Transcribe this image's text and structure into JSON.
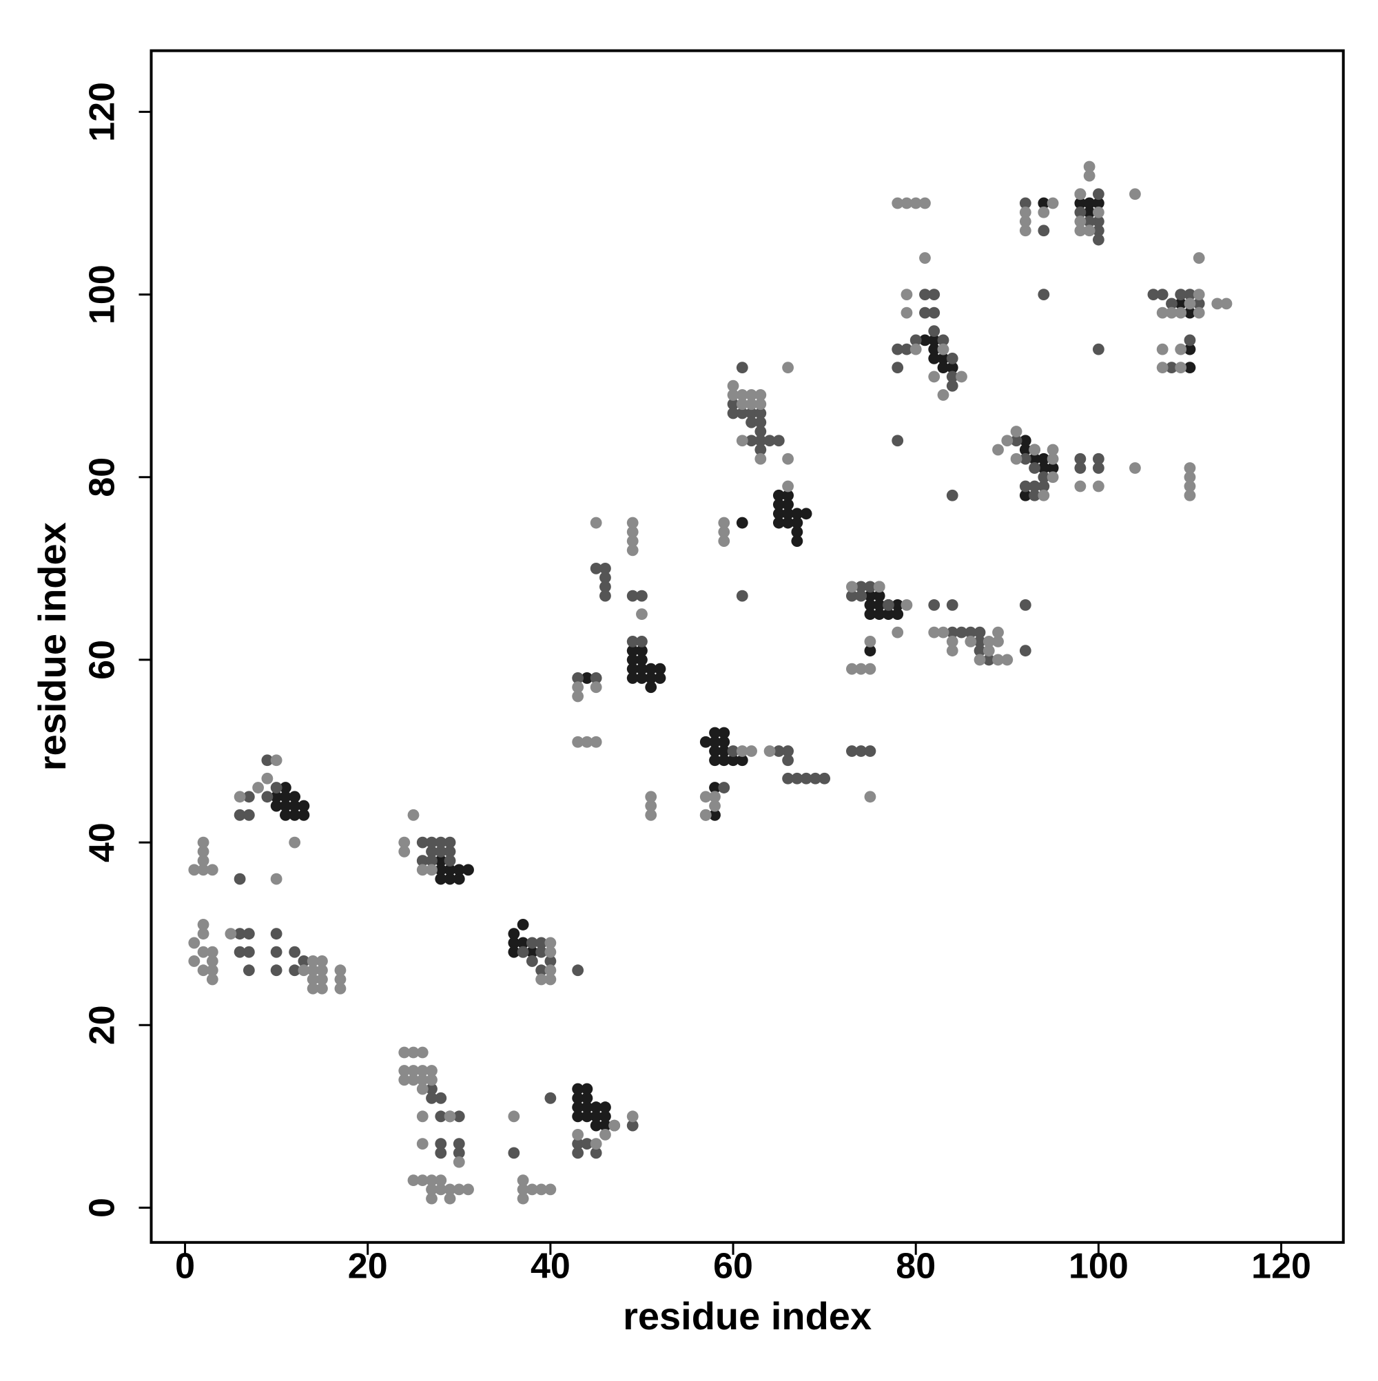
{
  "chart_data": {
    "type": "scatter",
    "xlabel": "residue index",
    "ylabel": "residue index",
    "xlim": [
      -3.7,
      126.8
    ],
    "ylim": [
      -3.8,
      126.7
    ],
    "xticks": [
      0,
      20,
      40,
      60,
      80,
      100,
      120
    ],
    "yticks": [
      0,
      20,
      40,
      60,
      80,
      100,
      120
    ],
    "series": [
      {
        "color": "#1c1c1c",
        "x": [
          10,
          11,
          11,
          10,
          11,
          12,
          11,
          12,
          13,
          13,
          12,
          28,
          28,
          29,
          29,
          30,
          30,
          31,
          28,
          36,
          36,
          37,
          37,
          36,
          37,
          38,
          43,
          43,
          43,
          44,
          44,
          44,
          43,
          44,
          45,
          45,
          46,
          46,
          45,
          46,
          49,
          49,
          49,
          49,
          50,
          50,
          50,
          50,
          51,
          51,
          51,
          52,
          52,
          58,
          58,
          59,
          59,
          58,
          59,
          58,
          59,
          60,
          61,
          57,
          58,
          58,
          65,
          65,
          65,
          65,
          66,
          66,
          66,
          66,
          67,
          67,
          67,
          67,
          68,
          75,
          75,
          75,
          76,
          76,
          76,
          76,
          77,
          77,
          78,
          78,
          75,
          44,
          61,
          92,
          92,
          93,
          94,
          94,
          95,
          93,
          92,
          82,
          81,
          82,
          83,
          83,
          84,
          82,
          98,
          99,
          99,
          100,
          94,
          109,
          110,
          110,
          110,
          110
        ],
        "y": [
          45,
          45,
          46,
          44,
          44,
          44,
          43,
          43,
          43,
          44,
          45,
          37,
          36,
          36,
          37,
          36,
          37,
          37,
          38,
          29,
          30,
          31,
          29,
          28,
          28,
          28,
          11,
          12,
          13,
          13,
          12,
          11,
          10,
          10,
          10,
          11,
          11,
          10,
          9,
          9,
          58,
          59,
          60,
          61,
          61,
          60,
          59,
          58,
          58,
          59,
          57,
          58,
          59,
          51,
          52,
          52,
          51,
          50,
          50,
          49,
          49,
          49,
          49,
          51,
          43,
          46,
          75,
          76,
          77,
          78,
          78,
          77,
          76,
          75,
          75,
          76,
          74,
          73,
          76,
          65,
          66,
          67,
          65,
          66,
          67,
          68,
          65,
          66,
          65,
          66,
          61,
          58,
          75,
          84,
          83,
          82,
          82,
          81,
          81,
          83,
          78,
          95,
          95,
          93,
          93,
          92,
          92,
          94,
          110,
          110,
          109,
          110,
          110,
          99,
          99,
          98,
          94,
          92
        ]
      },
      {
        "color": "#555555",
        "x": [
          9,
          10,
          9,
          6,
          7,
          7,
          6,
          6,
          7,
          6,
          7,
          10,
          10,
          12,
          12,
          13,
          10,
          7,
          27,
          26,
          27,
          28,
          29,
          29,
          26,
          27,
          28,
          29,
          37,
          38,
          38,
          39,
          39,
          39,
          40,
          43,
          27,
          27,
          28,
          28,
          29,
          30,
          28,
          28,
          30,
          30,
          43,
          43,
          44,
          45,
          47,
          49,
          40,
          36,
          45,
          46,
          46,
          46,
          46,
          49,
          50,
          43,
          45,
          49,
          50,
          60,
          59,
          57,
          66,
          66,
          65,
          66,
          67,
          68,
          69,
          70,
          73,
          74,
          75,
          73,
          74,
          74,
          75,
          77,
          60,
          60,
          61,
          62,
          63,
          63,
          63,
          62,
          63,
          63,
          62,
          61,
          64,
          65,
          61,
          78,
          79,
          81,
          82,
          81,
          82,
          80,
          82,
          83,
          84,
          84,
          84,
          84,
          78,
          78,
          84,
          85,
          86,
          87,
          87,
          87,
          88,
          82,
          84,
          92,
          92,
          92,
          93,
          94,
          94,
          93,
          92,
          91,
          93,
          92,
          94,
          98,
          98,
          100,
          100,
          100,
          100,
          99,
          94,
          100,
          98,
          98,
          100,
          100,
          106,
          107,
          108,
          109,
          110,
          111,
          110,
          108
        ],
        "y": [
          49,
          46,
          45,
          43,
          43,
          45,
          36,
          30,
          30,
          28,
          28,
          30,
          28,
          28,
          26,
          27,
          26,
          26,
          39,
          38,
          38,
          39,
          39,
          38,
          40,
          40,
          40,
          40,
          28,
          29,
          27,
          29,
          28,
          26,
          27,
          26,
          13,
          12,
          12,
          10,
          10,
          10,
          7,
          6,
          7,
          6,
          7,
          6,
          7,
          6,
          9,
          9,
          12,
          6,
          70,
          70,
          69,
          68,
          67,
          67,
          67,
          58,
          58,
          62,
          62,
          50,
          46,
          43,
          50,
          49,
          50,
          47,
          47,
          47,
          47,
          47,
          50,
          50,
          50,
          67,
          67,
          68,
          68,
          66,
          88,
          87,
          87,
          87,
          87,
          85,
          84,
          86,
          86,
          83,
          84,
          92,
          84,
          84,
          67,
          94,
          94,
          100,
          100,
          98,
          98,
          95,
          96,
          95,
          93,
          91,
          90,
          78,
          84,
          92,
          63,
          63,
          63,
          63,
          62,
          61,
          60,
          66,
          66,
          66,
          61,
          82,
          81,
          80,
          79,
          79,
          79,
          84,
          78,
          110,
          107,
          111,
          109,
          111,
          108,
          107,
          106,
          108,
          100,
          94,
          82,
          81,
          82,
          81,
          100,
          100,
          99,
          100,
          100,
          99,
          95,
          92
        ]
      },
      {
        "color": "#8a8a8a",
        "x": [
          1,
          2,
          2,
          2,
          2,
          3,
          1,
          1,
          2,
          2,
          2,
          2,
          3,
          3,
          3,
          3,
          5,
          8,
          9,
          10,
          6,
          10,
          12,
          13,
          14,
          14,
          14,
          15,
          15,
          15,
          14,
          15,
          17,
          17,
          17,
          25,
          24,
          24,
          26,
          27,
          24,
          25,
          26,
          24,
          25,
          26,
          27,
          24,
          25,
          26,
          27,
          26,
          25,
          26,
          27,
          28,
          27,
          28,
          29,
          27,
          29,
          30,
          31,
          30,
          26,
          26,
          29,
          36,
          37,
          37,
          38,
          39,
          40,
          37,
          39,
          40,
          40,
          40,
          40,
          43,
          46,
          47,
          45,
          49,
          44,
          43,
          45,
          45,
          43,
          43,
          45,
          49,
          49,
          49,
          49,
          50,
          51,
          51,
          51,
          57,
          58,
          58,
          57,
          59,
          59,
          59,
          61,
          62,
          64,
          60,
          60,
          61,
          62,
          61,
          62,
          63,
          63,
          61,
          63,
          66,
          66,
          66,
          73,
          74,
          75,
          75,
          73,
          78,
          79,
          75,
          76,
          82,
          83,
          84,
          84,
          86,
          87,
          88,
          88,
          89,
          89,
          89,
          90,
          78,
          79,
          80,
          81,
          79,
          79,
          80,
          81,
          83,
          83,
          82,
          85,
          89,
          90,
          91,
          91,
          93,
          95,
          95,
          95,
          94,
          98,
          100,
          104,
          110,
          110,
          110,
          110,
          92,
          92,
          92,
          94,
          95,
          98,
          99,
          99,
          98,
          98,
          99,
          100,
          104,
          107,
          107,
          107,
          109,
          109,
          110,
          111,
          111,
          111,
          113,
          114,
          108,
          109
        ],
        "y": [
          37,
          37,
          38,
          39,
          40,
          37,
          29,
          27,
          31,
          30,
          28,
          26,
          28,
          27,
          26,
          25,
          30,
          46,
          47,
          49,
          45,
          36,
          40,
          26,
          26,
          27,
          25,
          27,
          26,
          25,
          24,
          24,
          26,
          25,
          24,
          43,
          40,
          39,
          37,
          37,
          17,
          17,
          17,
          15,
          15,
          15,
          15,
          14,
          14,
          14,
          14,
          13,
          3,
          3,
          3,
          3,
          2,
          2,
          2,
          1,
          1,
          2,
          2,
          5,
          10,
          7,
          10,
          10,
          3,
          2,
          2,
          2,
          2,
          1,
          25,
          25,
          26,
          28,
          29,
          8,
          8,
          9,
          7,
          10,
          51,
          51,
          51,
          57,
          56,
          57,
          75,
          72,
          73,
          74,
          75,
          65,
          43,
          44,
          45,
          43,
          44,
          45,
          45,
          75,
          74,
          73,
          50,
          50,
          50,
          90,
          89,
          89,
          89,
          88,
          88,
          88,
          89,
          84,
          82,
          79,
          82,
          92,
          59,
          59,
          59,
          45,
          68,
          63,
          66,
          62,
          68,
          63,
          63,
          61,
          62,
          62,
          60,
          62,
          61,
          62,
          63,
          60,
          60,
          110,
          110,
          110,
          110,
          100,
          98,
          94,
          104,
          94,
          89,
          91,
          91,
          83,
          84,
          85,
          82,
          83,
          83,
          82,
          80,
          78,
          79,
          79,
          81,
          81,
          80,
          79,
          78,
          107,
          108,
          109,
          109,
          110,
          111,
          114,
          113,
          108,
          107,
          107,
          109,
          111,
          98,
          94,
          92,
          92,
          94,
          99,
          98,
          100,
          104,
          99,
          99,
          98,
          98
        ]
      }
    ]
  }
}
